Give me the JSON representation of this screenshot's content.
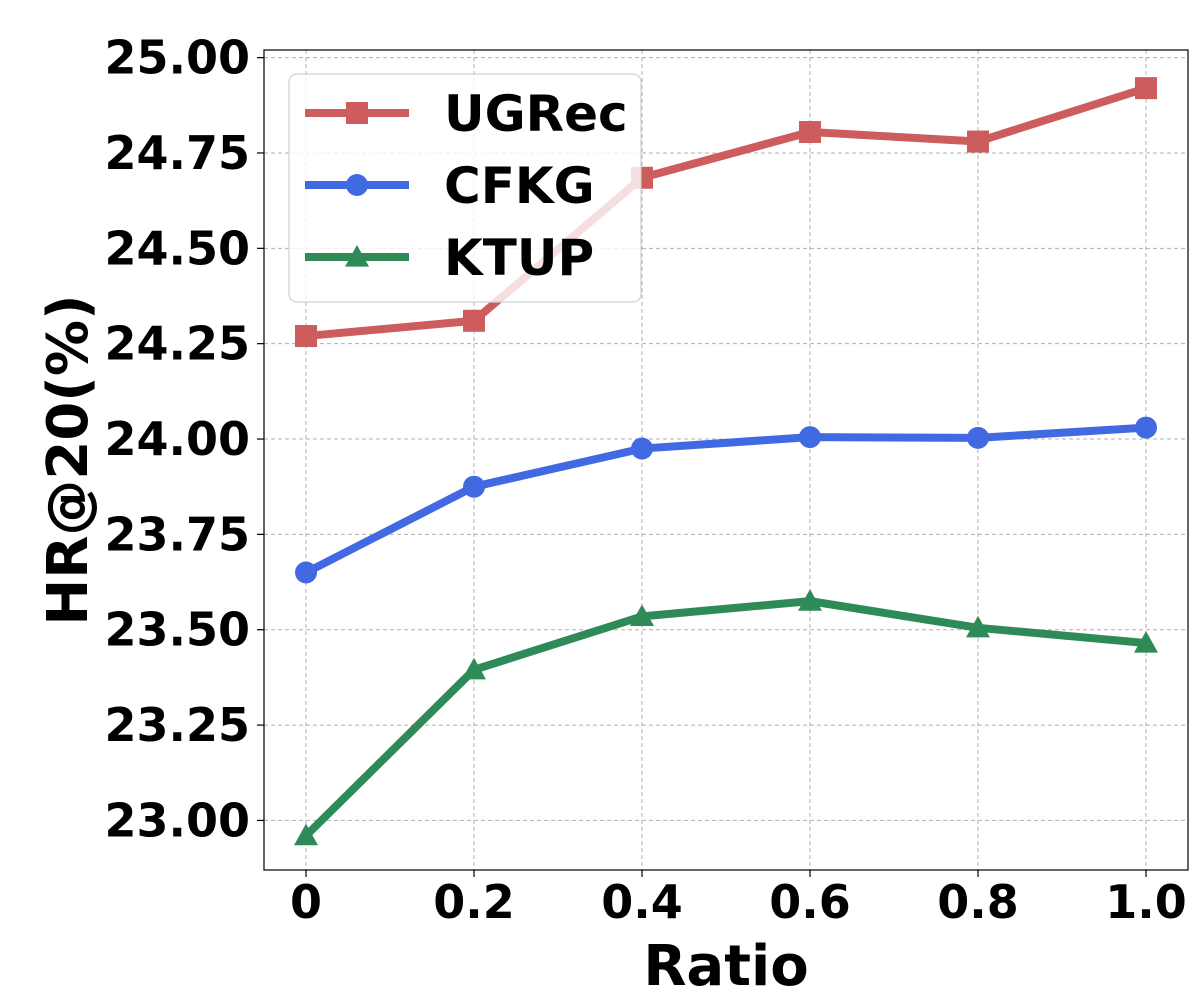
{
  "chart_data": {
    "type": "line",
    "title": "",
    "xlabel": "Ratio",
    "ylabel": "HR@20(%)",
    "x": [
      0,
      0.2,
      0.4,
      0.6,
      0.8,
      1.0
    ],
    "x_tick_labels": [
      "0",
      "0.2",
      "0.4",
      "0.6",
      "0.8",
      "1.0"
    ],
    "y_ticks": [
      23.0,
      23.25,
      23.5,
      23.75,
      24.0,
      24.25,
      24.5,
      24.75,
      25.0
    ],
    "y_tick_labels": [
      "23.00",
      "23.25",
      "23.50",
      "23.75",
      "24.00",
      "24.25",
      "24.50",
      "24.75",
      "25.00"
    ],
    "xlim": [
      -0.05,
      1.05
    ],
    "ylim": [
      22.87,
      25.02
    ],
    "grid": true,
    "legend_position": "top-left",
    "series": [
      {
        "name": "UGRec",
        "color": "#cd5c5c",
        "marker": "square",
        "values": [
          24.27,
          24.31,
          24.685,
          24.805,
          24.78,
          24.92
        ]
      },
      {
        "name": "CFKG",
        "color": "#4169e1",
        "marker": "circle",
        "values": [
          23.65,
          23.875,
          23.975,
          24.005,
          24.003,
          24.03
        ]
      },
      {
        "name": "KTUP",
        "color": "#2e8b57",
        "marker": "triangle",
        "values": [
          22.96,
          23.395,
          23.535,
          23.575,
          23.505,
          23.465
        ]
      }
    ]
  }
}
